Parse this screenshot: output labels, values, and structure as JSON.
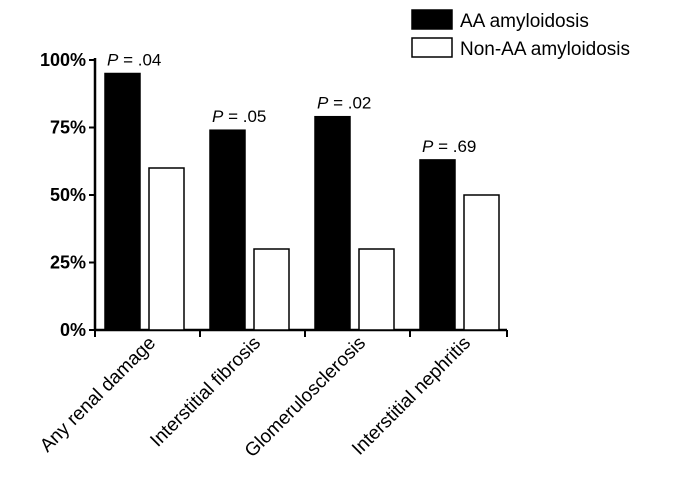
{
  "chart_data": {
    "type": "bar",
    "title": "",
    "xlabel": "",
    "ylabel": "",
    "ylim": [
      0,
      100
    ],
    "y_unit": "%",
    "yticks": [
      "0%",
      "25%",
      "50%",
      "75%",
      "100%"
    ],
    "ytick_values": [
      0,
      25,
      50,
      75,
      100
    ],
    "grid": false,
    "legend_position": "top-right",
    "categories": [
      "Any renal damage",
      "Interstitial fibrosis",
      "Glomerulosclerosis",
      "Interstitial nephritis"
    ],
    "series": [
      {
        "name": "AA amyloidosis",
        "color": "#000000",
        "values": [
          95,
          74,
          79,
          63
        ]
      },
      {
        "name": "Non-AA amyloidosis",
        "color": "#ffffff",
        "values": [
          60,
          30,
          30,
          50
        ]
      }
    ],
    "annotations": [
      {
        "prefix": "P",
        "text": " = .04"
      },
      {
        "prefix": "P",
        "text": " = .05"
      },
      {
        "prefix": "P",
        "text": " = .02"
      },
      {
        "prefix": "P",
        "text": " = .69"
      }
    ]
  }
}
